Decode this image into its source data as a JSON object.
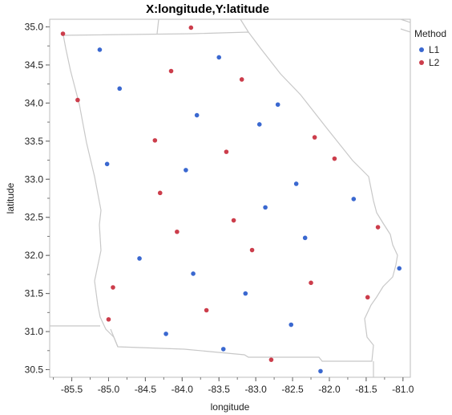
{
  "chart_data": {
    "type": "scatter",
    "title": "X:longitude,Y:latitude",
    "xlabel": "longitude",
    "ylabel": "latitude",
    "xlim": [
      -85.8,
      -80.9
    ],
    "ylim": [
      30.4,
      35.1
    ],
    "xticks": [
      "-85.5",
      "-85.0",
      "-84.5",
      "-84.0",
      "-83.5",
      "-83.0",
      "-82.5",
      "-82.0",
      "-81.5",
      "-81.0"
    ],
    "yticks": [
      "30.5",
      "31.0",
      "31.5",
      "32.0",
      "32.5",
      "33.0",
      "33.5",
      "34.0",
      "34.5",
      "35.0"
    ],
    "grid": false,
    "legend": {
      "title": "Method",
      "position": "right"
    },
    "series": [
      {
        "name": "L1",
        "color": "#3a68d0",
        "points": [
          [
            -85.12,
            34.7
          ],
          [
            -84.85,
            34.19
          ],
          [
            -83.5,
            34.6
          ],
          [
            -83.8,
            33.84
          ],
          [
            -82.7,
            33.98
          ],
          [
            -82.95,
            33.72
          ],
          [
            -85.02,
            33.2
          ],
          [
            -83.95,
            33.12
          ],
          [
            -82.45,
            32.94
          ],
          [
            -82.87,
            32.63
          ],
          [
            -81.67,
            32.74
          ],
          [
            -82.33,
            32.23
          ],
          [
            -84.58,
            31.96
          ],
          [
            -83.85,
            31.76
          ],
          [
            -83.14,
            31.5
          ],
          [
            -81.05,
            31.83
          ],
          [
            -82.52,
            31.09
          ],
          [
            -84.22,
            30.97
          ],
          [
            -83.44,
            30.77
          ],
          [
            -82.12,
            30.48
          ]
        ]
      },
      {
        "name": "L2",
        "color": "#cc3d4b",
        "points": [
          [
            -85.62,
            34.91
          ],
          [
            -83.88,
            34.99
          ],
          [
            -84.15,
            34.42
          ],
          [
            -83.19,
            34.31
          ],
          [
            -85.42,
            34.04
          ],
          [
            -84.37,
            33.51
          ],
          [
            -83.4,
            33.36
          ],
          [
            -82.2,
            33.55
          ],
          [
            -81.93,
            33.27
          ],
          [
            -84.3,
            32.82
          ],
          [
            -83.3,
            32.46
          ],
          [
            -84.07,
            32.31
          ],
          [
            -83.05,
            32.07
          ],
          [
            -81.34,
            32.37
          ],
          [
            -84.94,
            31.58
          ],
          [
            -82.25,
            31.64
          ],
          [
            -81.48,
            31.45
          ],
          [
            -83.67,
            31.28
          ],
          [
            -85.0,
            31.16
          ],
          [
            -82.79,
            30.63
          ]
        ]
      }
    ]
  }
}
